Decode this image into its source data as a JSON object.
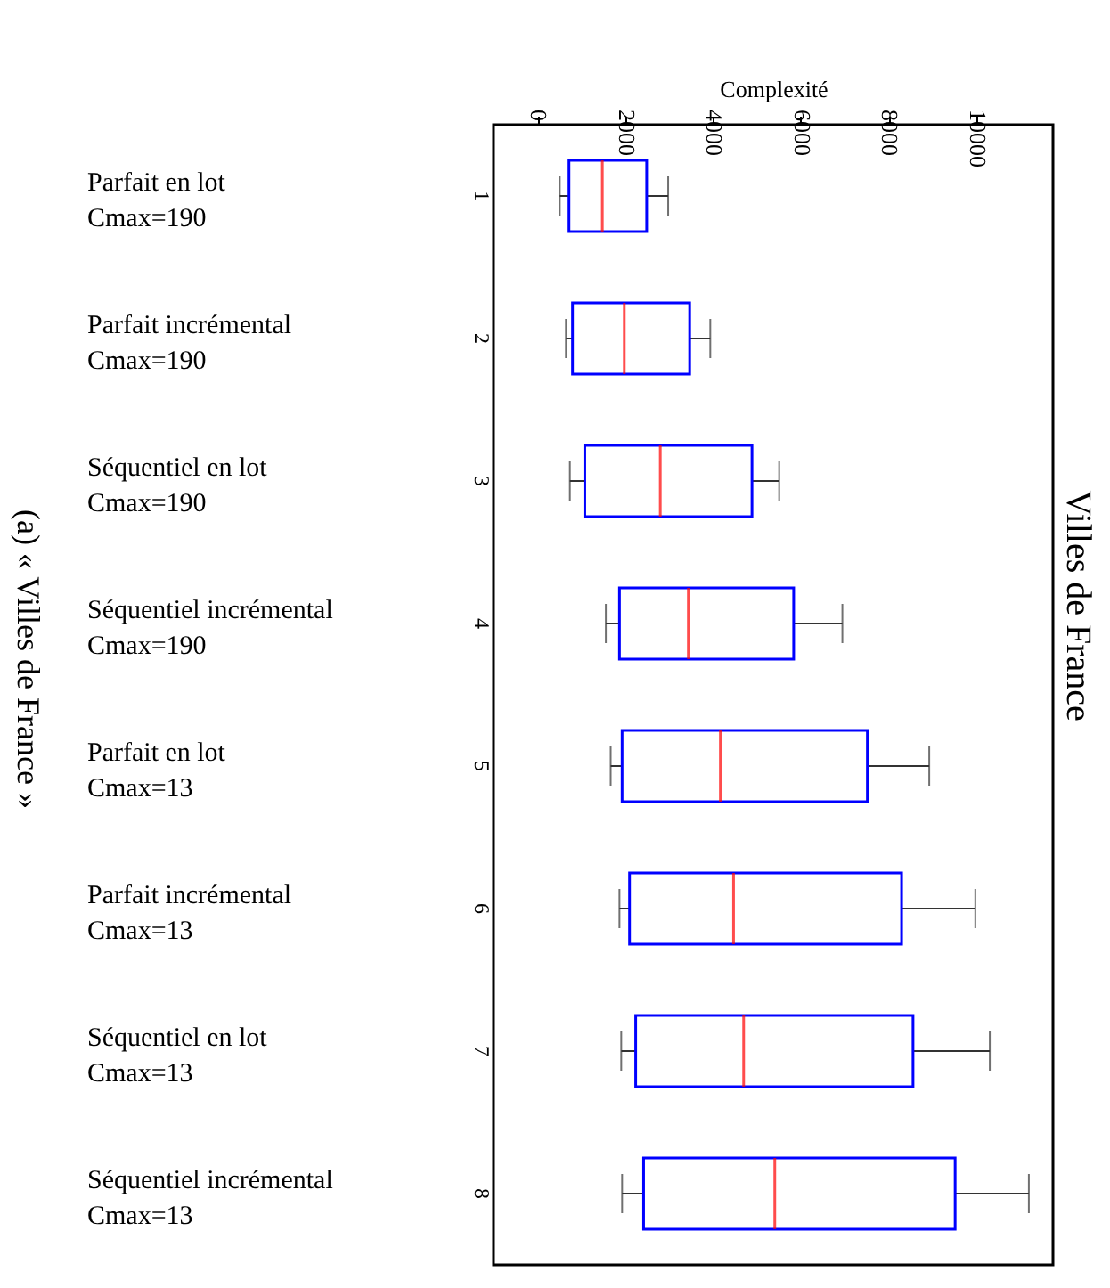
{
  "chart_data": {
    "type": "box",
    "orientation": "horizontal",
    "title": "Villes de France",
    "xlabel": "Complexité",
    "categories": [
      "1",
      "2",
      "3",
      "4",
      "5",
      "6",
      "7",
      "8"
    ],
    "boxes": [
      {
        "low": 510,
        "q1": 720,
        "median": 1480,
        "q3": 2490,
        "high": 2980
      },
      {
        "low": 650,
        "q1": 800,
        "median": 1980,
        "q3": 3470,
        "high": 3940
      },
      {
        "low": 740,
        "q1": 1080,
        "median": 2800,
        "q3": 4890,
        "high": 5510
      },
      {
        "low": 1560,
        "q1": 1870,
        "median": 3440,
        "q3": 5840,
        "high": 6950
      },
      {
        "low": 1670,
        "q1": 1930,
        "median": 4170,
        "q3": 7520,
        "high": 8930
      },
      {
        "low": 1870,
        "q1": 2100,
        "median": 4470,
        "q3": 8300,
        "high": 9980
      },
      {
        "low": 1910,
        "q1": 2240,
        "median": 4700,
        "q3": 8560,
        "high": 10310
      },
      {
        "low": 1930,
        "q1": 2420,
        "median": 5410,
        "q3": 9520,
        "high": 11200
      }
    ],
    "color": "#0000ff",
    "xlim": [
      -1000,
      11750
    ],
    "xticks": [
      0,
      2000,
      4000,
      6000,
      8000,
      10000
    ],
    "grid": false,
    "annotations": [
      "Parfait en lot\nCmax=190",
      "Parfait incrémental\nCmax=190",
      "Séquentiel en lot\nCmax=190",
      "Séquentiel incrémental\nCmax=190",
      "Parfait en lot\nCmax=13",
      "Parfait incrémental\nCmax=13",
      "Séquentiel en lot\nCmax=13",
      "Séquentiel incrémental\nCmax=13",
      "(a) « Villes de France »"
    ]
  }
}
